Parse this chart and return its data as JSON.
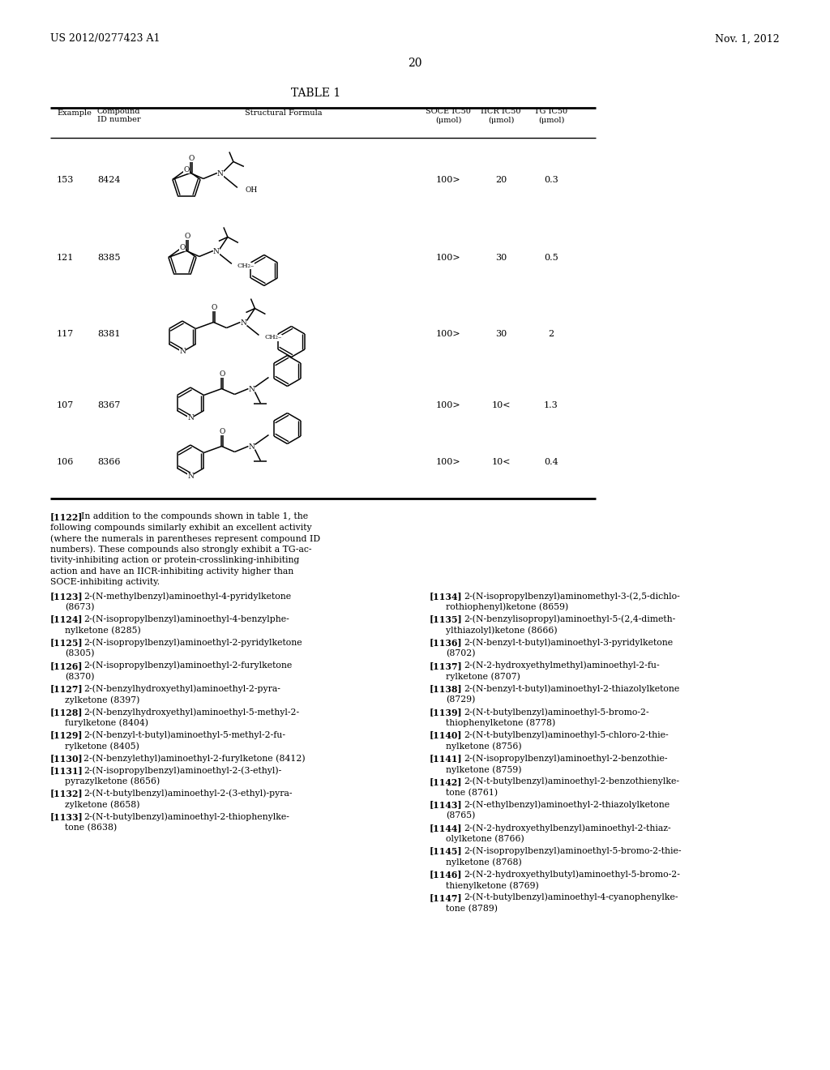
{
  "header_left": "US 2012/0277423 A1",
  "header_right": "Nov. 1, 2012",
  "page_number": "20",
  "table_title": "TABLE 1",
  "bg_color": "#ffffff",
  "rows": [
    {
      "example": "153",
      "id": "8424",
      "soce": "100>",
      "iicr": "20",
      "tg": "0.3"
    },
    {
      "example": "121",
      "id": "8385",
      "soce": "100>",
      "iicr": "30",
      "tg": "0.5"
    },
    {
      "example": "117",
      "id": "8381",
      "soce": "100>",
      "iicr": "30",
      "tg": "2"
    },
    {
      "example": "107",
      "id": "8367",
      "soce": "100>",
      "iicr": "10<",
      "tg": "1.3"
    },
    {
      "example": "106",
      "id": "8366",
      "soce": "100>",
      "iicr": "10<",
      "tg": "0.4"
    }
  ],
  "para_lines": [
    "[1122]",
    "In addition to the compounds shown in table 1, the",
    "following compounds similarly exhibit an excellent activity",
    "(where the numerals in parentheses represent compound ID",
    "numbers). These compounds also strongly exhibit a TG-ac-",
    "tivity-inhibiting action or protein-crosslinking-inhibiting",
    "action and have an IICR-inhibiting activity higher than",
    "SOCE-inhibiting activity."
  ],
  "left_entries": [
    {
      "num": "[1123]",
      "line1": "2-(N-methylbenzyl)aminoethyl-4-pyridylketone",
      "line2": "(8673)"
    },
    {
      "num": "[1124]",
      "line1": "2-(N-isopropylbenzyl)aminoethyl-4-benzylphe-",
      "line2": "nylketone (8285)"
    },
    {
      "num": "[1125]",
      "line1": "2-(N-isopropylbenzyl)aminoethyl-2-pyridylketone",
      "line2": "(8305)"
    },
    {
      "num": "[1126]",
      "line1": "2-(N-isopropylbenzyl)aminoethyl-2-furylketone",
      "line2": "(8370)"
    },
    {
      "num": "[1127]",
      "line1": "2-(N-benzylhydroxyethyl)aminoethyl-2-pyra-",
      "line2": "zylketone (8397)"
    },
    {
      "num": "[1128]",
      "line1": "2-(N-benzylhydroxyethyl)aminoethyl-5-methyl-2-",
      "line2": "furylketone (8404)"
    },
    {
      "num": "[1129]",
      "line1": "2-(N-benzyl-t-butyl)aminoethyl-5-methyl-2-fu-",
      "line2": "rylketone (8405)"
    },
    {
      "num": "[1130]",
      "line1": "2-(N-benzylethyl)aminoethyl-2-furylketone (8412)",
      "line2": ""
    },
    {
      "num": "[1131]",
      "line1": "2-(N-isopropylbenzyl)aminoethyl-2-(3-ethyl)-",
      "line2": "pyrazylketone (8656)"
    },
    {
      "num": "[1132]",
      "line1": "2-(N-t-butylbenzyl)aminoethyl-2-(3-ethyl)-pyra-",
      "line2": "zylketone (8658)"
    },
    {
      "num": "[1133]",
      "line1": "2-(N-t-butylbenzyl)aminoethyl-2-thiophenylke-",
      "line2": "tone (8638)"
    }
  ],
  "right_entries": [
    {
      "num": "[1134]",
      "line1": "2-(N-isopropylbenzyl)aminomethyl-3-(2,5-dichlo-",
      "line2": "rothiophenyl)ketone (8659)"
    },
    {
      "num": "[1135]",
      "line1": "2-(N-benzylisopropyl)aminoethyl-5-(2,4-dimeth-",
      "line2": "ylthiazolyl)ketone (8666)"
    },
    {
      "num": "[1136]",
      "line1": "2-(N-benzyl-t-butyl)aminoethyl-3-pyridylketone",
      "line2": "(8702)"
    },
    {
      "num": "[1137]",
      "line1": "2-(N-2-hydroxyethylmethyl)aminoethyl-2-fu-",
      "line2": "rylketone (8707)"
    },
    {
      "num": "[1138]",
      "line1": "2-(N-benzyl-t-butyl)aminoethyl-2-thiazolylketone",
      "line2": "(8729)"
    },
    {
      "num": "[1139]",
      "line1": "2-(N-t-butylbenzyl)aminoethyl-5-bromo-2-",
      "line2": "thiophenylketone (8778)"
    },
    {
      "num": "[1140]",
      "line1": "2-(N-t-butylbenzyl)aminoethyl-5-chloro-2-thie-",
      "line2": "nylketone (8756)"
    },
    {
      "num": "[1141]",
      "line1": "2-(N-isopropylbenzyl)aminoethyl-2-benzothie-",
      "line2": "nylketone (8759)"
    },
    {
      "num": "[1142]",
      "line1": "2-(N-t-butylbenzyl)aminoethyl-2-benzothienylke-",
      "line2": "tone (8761)"
    },
    {
      "num": "[1143]",
      "line1": "2-(N-ethylbenzyl)aminoethyl-2-thiazolylketone",
      "line2": "(8765)"
    },
    {
      "num": "[1144]",
      "line1": "2-(N-2-hydroxyethylbenzyl)aminoethyl-2-thiaz-",
      "line2": "olylketone (8766)"
    },
    {
      "num": "[1145]",
      "line1": "2-(N-isopropylbenzyl)aminoethyl-5-bromo-2-thie-",
      "line2": "nylketone (8768)"
    },
    {
      "num": "[1146]",
      "line1": "2-(N-2-hydroxyethylbutyl)aminoethyl-5-bromo-2-",
      "line2": "thienylketone (8769)"
    },
    {
      "num": "[1147]",
      "line1": "2-(N-t-butylbenzyl)aminoethyl-4-cyanophenylke-",
      "line2": "tone (8789)"
    }
  ]
}
